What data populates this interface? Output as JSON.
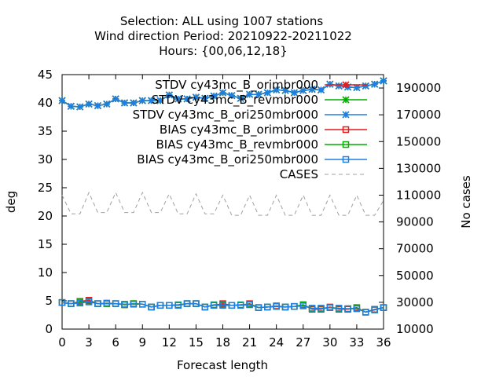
{
  "chart_data": {
    "type": "line",
    "title_lines": [
      "Selection: ALL using  1007 stations",
      "Wind direction   Period: 20210922-20211022",
      "Hours: {00,06,12,18}"
    ],
    "xlabel": "Forecast length",
    "ylabel": "deg",
    "y2label": "No cases",
    "xlim": [
      0,
      36
    ],
    "ylim": [
      0,
      45
    ],
    "y2lim": [
      10000,
      200000
    ],
    "xticks": [
      0,
      3,
      6,
      9,
      12,
      15,
      18,
      21,
      24,
      27,
      30,
      33,
      36
    ],
    "yticks": [
      0,
      5,
      10,
      15,
      20,
      25,
      30,
      35,
      40,
      45
    ],
    "y2ticks": [
      10000,
      30000,
      50000,
      70000,
      90000,
      110000,
      130000,
      150000,
      170000,
      190000
    ],
    "grid": false,
    "legend_position": "top-right",
    "x": [
      0,
      1,
      2,
      3,
      4,
      5,
      6,
      7,
      8,
      9,
      10,
      11,
      12,
      13,
      14,
      15,
      16,
      17,
      18,
      19,
      20,
      21,
      22,
      23,
      24,
      25,
      26,
      27,
      28,
      29,
      30,
      31,
      32,
      33,
      34,
      35,
      36
    ],
    "series": [
      {
        "name": "STDV cy43mc_B_orimbr000",
        "axis": "y1",
        "color": "#e41a1c",
        "marker": "star",
        "dash": "solid",
        "values": [
          40.4,
          39.4,
          39.3,
          39.8,
          39.5,
          39.8,
          40.7,
          40.0,
          40.0,
          40.4,
          40.4,
          40.4,
          41.4,
          40.7,
          40.7,
          41.0,
          40.8,
          41.2,
          41.8,
          41.3,
          40.8,
          41.5,
          41.5,
          41.8,
          42.3,
          42.2,
          41.8,
          42.2,
          42.4,
          42.3,
          43.3,
          43.0,
          42.8,
          42.7,
          43.0,
          43.3,
          43.9
        ]
      },
      {
        "name": "STDV cy43mc_B_revmbr000",
        "axis": "y1",
        "color": "#00b000",
        "marker": "star",
        "dash": "solid",
        "values": [
          40.4,
          39.4,
          39.3,
          39.8,
          39.5,
          39.8,
          40.7,
          40.0,
          40.0,
          40.4,
          40.4,
          40.4,
          41.4,
          40.7,
          40.7,
          41.0,
          40.8,
          41.2,
          41.8,
          41.3,
          40.8,
          41.5,
          41.5,
          41.8,
          42.3,
          42.2,
          41.8,
          42.2,
          42.4,
          42.3,
          43.3,
          43.0,
          42.8,
          42.7,
          43.0,
          43.3,
          43.9
        ]
      },
      {
        "name": "STDV cy43mc_B_ori250mbr000",
        "axis": "y1",
        "color": "#1f7fe0",
        "marker": "star",
        "dash": "solid",
        "values": [
          40.4,
          39.4,
          39.3,
          39.8,
          39.5,
          39.8,
          40.7,
          40.0,
          40.0,
          40.4,
          40.4,
          40.4,
          41.4,
          40.7,
          40.7,
          41.0,
          40.8,
          41.2,
          41.8,
          41.3,
          40.8,
          41.5,
          41.5,
          41.8,
          42.3,
          42.2,
          41.8,
          42.2,
          42.4,
          42.3,
          43.3,
          43.0,
          42.8,
          42.7,
          43.0,
          43.3,
          43.9
        ]
      },
      {
        "name": "BIAS cy43mc_B_orimbr000",
        "axis": "y1",
        "color": "#e41a1c",
        "marker": "square",
        "dash": "solid",
        "values": [
          4.7,
          4.5,
          4.9,
          5.1,
          4.5,
          4.5,
          4.5,
          4.3,
          4.5,
          4.4,
          3.9,
          4.2,
          4.2,
          4.2,
          4.5,
          4.5,
          3.9,
          4.2,
          4.5,
          4.2,
          4.2,
          4.5,
          3.8,
          3.9,
          4.1,
          3.9,
          4.0,
          4.3,
          3.5,
          3.5,
          3.9,
          3.5,
          3.5,
          3.8,
          3.0,
          3.5,
          3.8
        ]
      },
      {
        "name": "BIAS cy43mc_B_revmbr000",
        "axis": "y1",
        "color": "#00b000",
        "marker": "square",
        "dash": "solid",
        "values": [
          4.7,
          4.5,
          4.8,
          4.9,
          4.5,
          4.5,
          4.5,
          4.3,
          4.5,
          4.4,
          3.9,
          4.2,
          4.2,
          4.3,
          4.5,
          4.5,
          3.9,
          4.3,
          4.3,
          4.2,
          4.3,
          4.4,
          3.8,
          3.9,
          4.0,
          3.9,
          4.0,
          4.3,
          3.6,
          3.6,
          3.8,
          3.6,
          3.6,
          3.7,
          3.0,
          3.4,
          3.8
        ]
      },
      {
        "name": "BIAS cy43mc_B_ori250mbr000",
        "axis": "y1",
        "color": "#1f7fe0",
        "marker": "square",
        "dash": "solid",
        "values": [
          4.7,
          4.5,
          4.6,
          4.8,
          4.5,
          4.6,
          4.5,
          4.4,
          4.4,
          4.4,
          3.9,
          4.2,
          4.2,
          4.2,
          4.5,
          4.5,
          3.9,
          4.2,
          4.2,
          4.2,
          4.2,
          4.3,
          3.8,
          3.9,
          4.0,
          3.9,
          4.0,
          4.1,
          3.7,
          3.7,
          3.8,
          3.7,
          3.6,
          3.6,
          3.0,
          3.4,
          3.8
        ]
      },
      {
        "name": "CASES",
        "axis": "y2",
        "color": "#a0a0a0",
        "marker": "none",
        "dash": "dashed",
        "values": [
          110000,
          96000,
          96000,
          112000,
          97000,
          97000,
          112000,
          97000,
          97000,
          112000,
          97000,
          97000,
          111000,
          96000,
          96000,
          111000,
          96000,
          96000,
          110000,
          95000,
          95000,
          110000,
          95000,
          95000,
          110000,
          95000,
          95000,
          110000,
          95000,
          95000,
          110000,
          95000,
          95000,
          110000,
          95000,
          95000,
          106000
        ]
      }
    ]
  }
}
